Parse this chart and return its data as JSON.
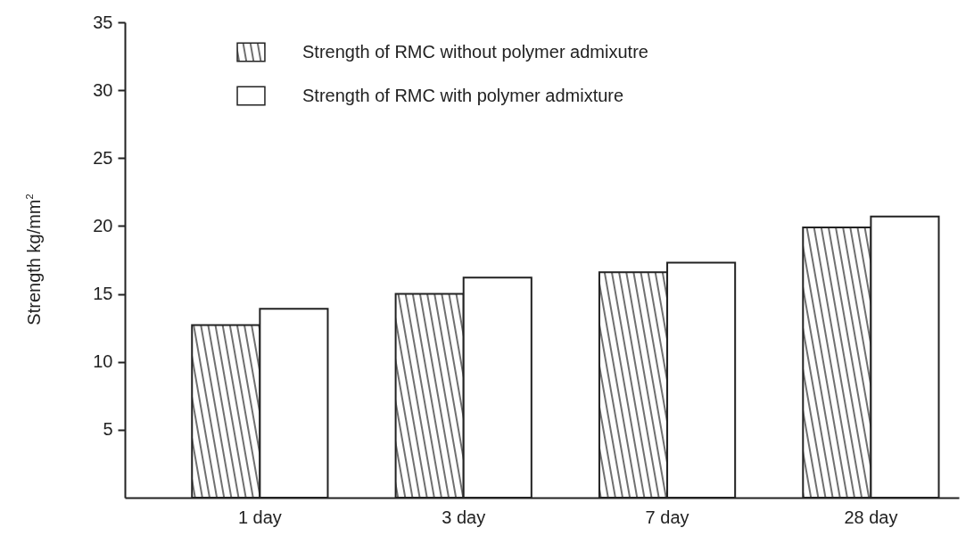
{
  "chart_data": {
    "type": "bar",
    "ylabel": "Strength kg/mm$^{2}$",
    "categories": [
      "1 day",
      "3 day",
      "7 day",
      "28 day"
    ],
    "series": [
      {
        "name": "Strength of RMC without polymer admixutre",
        "color": "#222222",
        "values": [
          12.7,
          15.0,
          16.6,
          19.9
        ]
      },
      {
        "name": "Strength of RMC with polymer admixture",
        "color": "#ffffff",
        "values": [
          13.9,
          16.2,
          17.3,
          20.7
        ]
      }
    ],
    "ylim": [
      0,
      35
    ],
    "yticks": [
      5,
      10,
      15,
      20,
      25,
      30,
      35
    ],
    "legend": "top",
    "grid": false
  }
}
